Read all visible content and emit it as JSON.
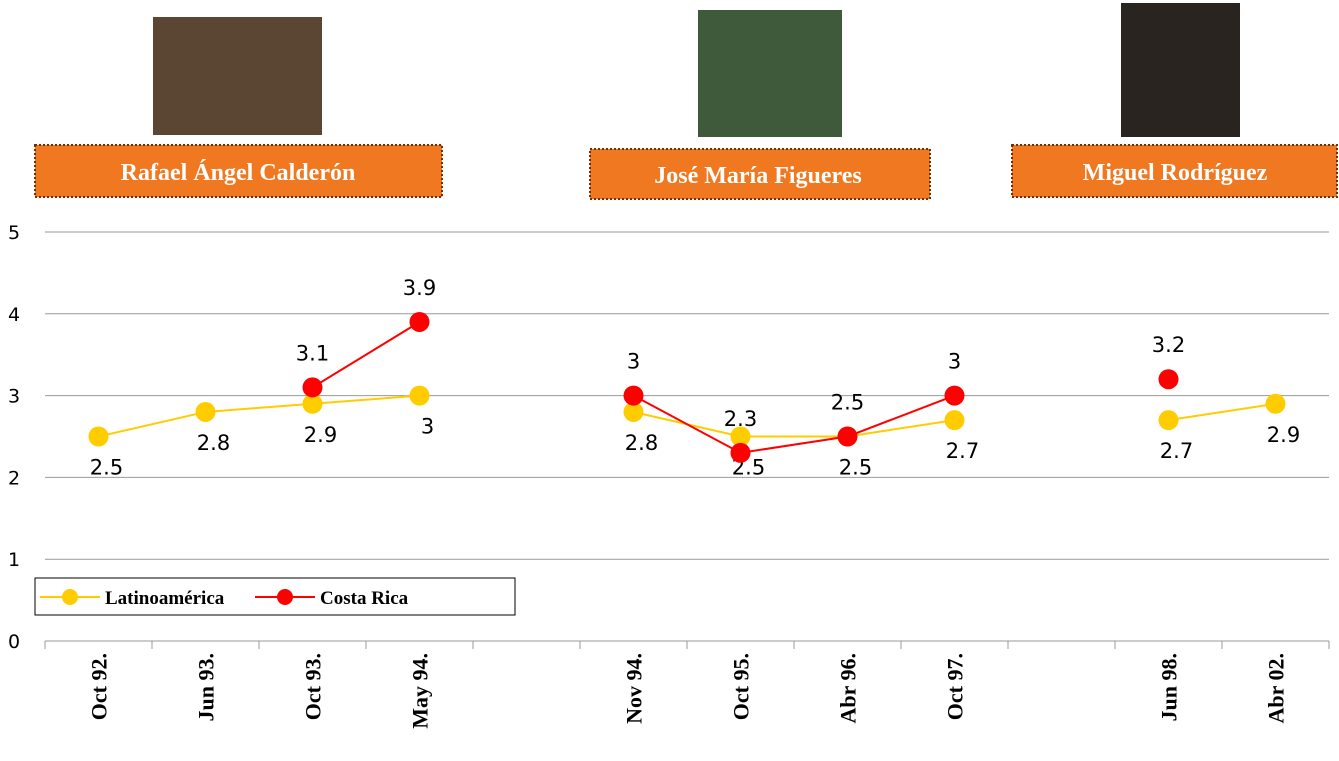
{
  "names": [
    "Rafael Ángel Calderón",
    "José María Figueres",
    "Miguel  Rodríguez"
  ],
  "chart_data": {
    "type": "line",
    "categories": [
      "Oct 92.",
      "Jun 93.",
      "Oct 93.",
      "May 94.",
      null,
      "Nov 94.",
      "Oct 95.",
      "Abr 96.",
      "Oct 97.",
      null,
      "Jun 98.",
      "Abr 02."
    ],
    "series": [
      {
        "name": "Latinoamérica",
        "color": "#ffcc00",
        "values": [
          2.5,
          2.8,
          2.9,
          3,
          null,
          2.8,
          2.5,
          2.5,
          2.7,
          null,
          2.7,
          2.9
        ]
      },
      {
        "name": "Costa Rica",
        "color": "#ff0000",
        "values": [
          null,
          null,
          3.1,
          3.9,
          null,
          3,
          2.3,
          2.5,
          3,
          null,
          3.2,
          null
        ]
      }
    ],
    "ylim": [
      0,
      5
    ],
    "yticks": [
      0,
      1,
      2,
      3,
      4,
      5
    ],
    "grid": true,
    "legend": "bottom-left"
  }
}
